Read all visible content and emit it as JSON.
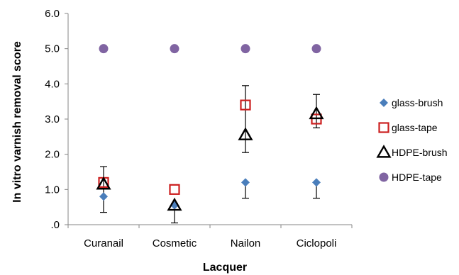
{
  "chart_data": {
    "type": "scatter",
    "xlabel": "Lacquer",
    "ylabel": "In vitro  varnish removal score",
    "categories": [
      "Curanail",
      "Cosmetic",
      "Nailon",
      "Ciclopoli"
    ],
    "ylim": [
      0,
      6
    ],
    "yticks": [
      0,
      1,
      2,
      3,
      4,
      5,
      6
    ],
    "ytick_labels": [
      ".0",
      "1.0",
      "2.0",
      "3.0",
      "4.0",
      "5.0",
      "6.0"
    ],
    "grid": false,
    "legend_position": "right",
    "series": [
      {
        "name": "glass-brush",
        "marker": "diamond",
        "color": "#4a7ebb",
        "values": [
          0.8,
          0.55,
          1.2,
          1.2
        ]
      },
      {
        "name": "glass-tape",
        "marker": "square-open",
        "color": "#cc1f1f",
        "values": [
          1.2,
          1.0,
          3.4,
          3.0
        ]
      },
      {
        "name": "HDPE-brush",
        "marker": "triangle-open",
        "color": "#000000",
        "values": [
          1.15,
          0.55,
          2.55,
          3.15
        ]
      },
      {
        "name": "HDPE-tape",
        "marker": "circle",
        "color": "#8064a2",
        "values": [
          5.0,
          5.0,
          5.0,
          5.0
        ]
      }
    ],
    "error_bars": [
      {
        "category": "Curanail",
        "low": 0.35,
        "high": 1.65
      },
      {
        "category": "Cosmetic",
        "low": 0.05,
        "high": 0.6
      },
      {
        "category": "Nailon",
        "low": 0.75,
        "high": 1.2
      },
      {
        "category": "Nailon",
        "low": 2.05,
        "high": 3.95
      },
      {
        "category": "Ciclopoli",
        "low": 0.75,
        "high": 1.2
      },
      {
        "category": "Ciclopoli",
        "low": 2.75,
        "high": 3.7
      }
    ]
  }
}
